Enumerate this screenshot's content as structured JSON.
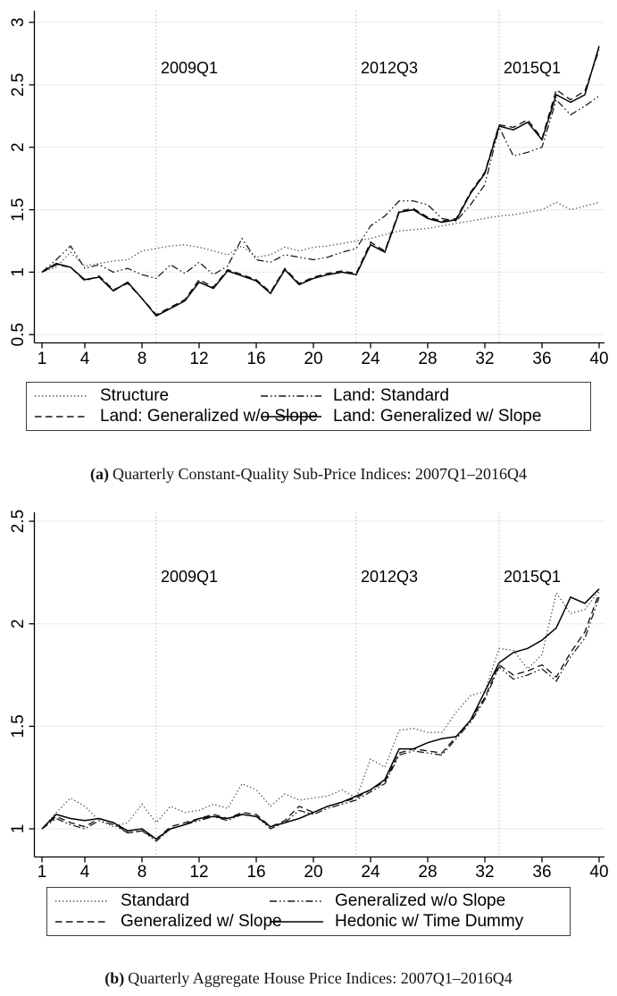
{
  "figure": {
    "background": "#ffffff",
    "colors": {
      "axis": "#000000",
      "grid": "#eaeaea",
      "event_line": "#b8b8b8",
      "text": "#000000",
      "dotted_series": "#474747",
      "dark_series": "#141414"
    }
  },
  "chart_data": [
    {
      "type": "line",
      "title": "",
      "xlabel": "",
      "ylabel": "",
      "caption": {
        "tag": "(a)",
        "text": "Quarterly Constant-Quality Sub-Price Indices: 2007Q1–2016Q4"
      },
      "x_description": "quarter index 1–40 (2007Q1–2016Q4)",
      "x_range": [
        1,
        40
      ],
      "ylim": [
        0.5,
        3.1
      ],
      "x_ticks": [
        1,
        4,
        8,
        12,
        16,
        20,
        24,
        28,
        32,
        36,
        40
      ],
      "y_ticks": [
        0.5,
        1,
        1.5,
        2,
        2.5,
        3
      ],
      "y_tick_labels": [
        "0.5",
        "1",
        "1.5",
        "2",
        "2.5",
        "3"
      ],
      "grid": "horizontal",
      "legend_position": "bottom-box",
      "event_lines": [
        {
          "x": 9,
          "label": "2009Q1"
        },
        {
          "x": 23,
          "label": "2012Q3"
        },
        {
          "x": 33,
          "label": "2015Q1"
        }
      ],
      "series": [
        {
          "name": "Structure",
          "style": "dotted",
          "color": "#474747",
          "values": [
            1.0,
            1.04,
            1.16,
            1.05,
            1.07,
            1.09,
            1.1,
            1.17,
            1.19,
            1.21,
            1.22,
            1.2,
            1.17,
            1.14,
            1.21,
            1.12,
            1.14,
            1.2,
            1.17,
            1.2,
            1.21,
            1.23,
            1.25,
            1.27,
            1.3,
            1.33,
            1.34,
            1.35,
            1.37,
            1.39,
            1.41,
            1.43,
            1.45,
            1.46,
            1.48,
            1.5,
            1.56,
            1.5,
            1.53,
            1.56
          ]
        },
        {
          "name": "Land: Standard",
          "style": "dashdot",
          "color": "#141414",
          "values": [
            1.0,
            1.1,
            1.21,
            1.03,
            1.06,
            1.0,
            1.03,
            0.98,
            0.95,
            1.06,
            0.99,
            1.08,
            0.98,
            1.05,
            1.27,
            1.1,
            1.08,
            1.14,
            1.12,
            1.1,
            1.12,
            1.16,
            1.19,
            1.37,
            1.45,
            1.57,
            1.57,
            1.54,
            1.43,
            1.41,
            1.54,
            1.7,
            2.16,
            1.93,
            1.96,
            2.0,
            2.38,
            2.26,
            2.33,
            2.41
          ]
        },
        {
          "name": "Land: Generalized w/o Slope",
          "style": "dashed",
          "color": "#141414",
          "values": [
            1.0,
            1.06,
            1.04,
            0.93,
            0.97,
            0.86,
            0.91,
            0.79,
            0.66,
            0.72,
            0.78,
            0.94,
            0.88,
            1.02,
            0.98,
            0.94,
            0.84,
            1.03,
            0.91,
            0.96,
            0.99,
            1.01,
            0.99,
            1.24,
            1.17,
            1.49,
            1.51,
            1.44,
            1.41,
            1.43,
            1.64,
            1.8,
            2.18,
            2.16,
            2.22,
            2.07,
            2.46,
            2.38,
            2.45,
            2.78
          ]
        },
        {
          "name": "Land: Generalized w/ Slope",
          "style": "solid",
          "color": "#000000",
          "values": [
            1.0,
            1.07,
            1.04,
            0.94,
            0.96,
            0.85,
            0.92,
            0.79,
            0.65,
            0.71,
            0.77,
            0.92,
            0.87,
            1.01,
            0.97,
            0.93,
            0.83,
            1.02,
            0.9,
            0.95,
            0.98,
            1.0,
            0.98,
            1.22,
            1.16,
            1.48,
            1.5,
            1.43,
            1.4,
            1.42,
            1.63,
            1.79,
            2.17,
            2.14,
            2.2,
            2.06,
            2.42,
            2.36,
            2.42,
            2.81
          ]
        }
      ]
    },
    {
      "type": "line",
      "title": "",
      "xlabel": "",
      "ylabel": "",
      "caption": {
        "tag": "(b)",
        "text": "Quarterly Aggregate House Price Indices: 2007Q1–2016Q4"
      },
      "x_description": "quarter index 1–40 (2007Q1–2016Q4)",
      "x_range": [
        1,
        40
      ],
      "ylim": [
        0.9,
        2.55
      ],
      "x_ticks": [
        1,
        4,
        8,
        12,
        16,
        20,
        24,
        28,
        32,
        36,
        40
      ],
      "y_ticks": [
        1,
        1.5,
        2,
        2.5
      ],
      "y_tick_labels": [
        "1",
        "1.5",
        "2",
        "2.5"
      ],
      "grid": "horizontal",
      "legend_position": "bottom-box",
      "event_lines": [
        {
          "x": 9,
          "label": "2009Q1"
        },
        {
          "x": 23,
          "label": "2012Q3"
        },
        {
          "x": 33,
          "label": "2015Q1"
        }
      ],
      "series": [
        {
          "name": "Standard",
          "style": "dotted",
          "color": "#474747",
          "values": [
            1.0,
            1.08,
            1.15,
            1.11,
            1.04,
            1.01,
            1.03,
            1.12,
            1.03,
            1.11,
            1.08,
            1.09,
            1.12,
            1.1,
            1.22,
            1.19,
            1.11,
            1.17,
            1.14,
            1.15,
            1.16,
            1.19,
            1.15,
            1.34,
            1.3,
            1.48,
            1.49,
            1.47,
            1.47,
            1.57,
            1.65,
            1.67,
            1.88,
            1.87,
            1.78,
            1.85,
            2.15,
            2.05,
            2.07,
            2.16
          ]
        },
        {
          "name": "Generalized w/o Slope",
          "style": "dashdot",
          "color": "#141414",
          "values": [
            1.0,
            1.05,
            1.02,
            1.0,
            1.04,
            1.02,
            0.98,
            0.99,
            0.94,
            1.0,
            1.02,
            1.04,
            1.06,
            1.04,
            1.07,
            1.06,
            1.0,
            1.03,
            1.09,
            1.07,
            1.1,
            1.12,
            1.14,
            1.18,
            1.22,
            1.36,
            1.38,
            1.37,
            1.36,
            1.44,
            1.52,
            1.63,
            1.79,
            1.73,
            1.75,
            1.78,
            1.72,
            1.84,
            1.93,
            2.13
          ]
        },
        {
          "name": "Generalized w/ Slope",
          "style": "dashed",
          "color": "#141414",
          "values": [
            1.0,
            1.06,
            1.03,
            1.01,
            1.05,
            1.03,
            0.98,
            0.99,
            0.95,
            1.01,
            1.03,
            1.05,
            1.07,
            1.05,
            1.08,
            1.07,
            1.01,
            1.04,
            1.11,
            1.08,
            1.11,
            1.13,
            1.15,
            1.19,
            1.23,
            1.37,
            1.39,
            1.38,
            1.37,
            1.45,
            1.53,
            1.64,
            1.8,
            1.75,
            1.77,
            1.8,
            1.74,
            1.86,
            1.96,
            2.15
          ]
        },
        {
          "name": "Hedonic w/ Time Dummy",
          "style": "solid",
          "color": "#000000",
          "values": [
            1.0,
            1.07,
            1.05,
            1.04,
            1.05,
            1.03,
            0.99,
            1.0,
            0.95,
            1.0,
            1.02,
            1.05,
            1.06,
            1.05,
            1.07,
            1.06,
            1.01,
            1.03,
            1.05,
            1.08,
            1.11,
            1.13,
            1.16,
            1.19,
            1.24,
            1.39,
            1.39,
            1.42,
            1.44,
            1.45,
            1.53,
            1.67,
            1.81,
            1.86,
            1.88,
            1.92,
            1.98,
            2.13,
            2.1,
            2.17
          ]
        }
      ]
    }
  ]
}
